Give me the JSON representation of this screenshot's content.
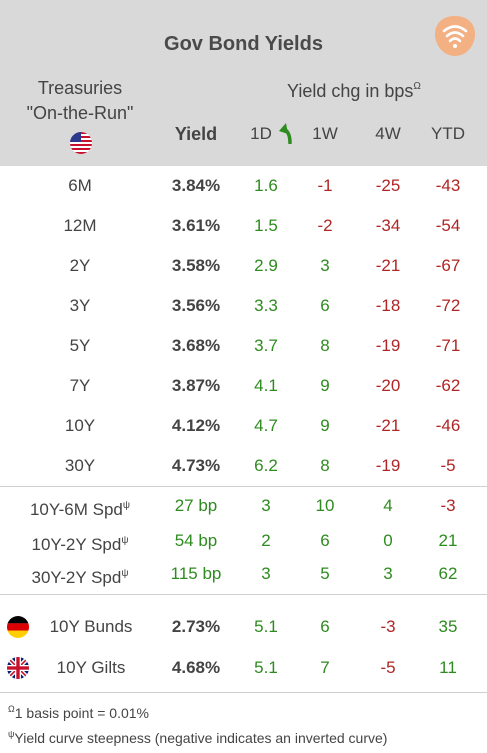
{
  "title": "Gov Bond Yields",
  "header": {
    "treasuries_line1": "Treasuries",
    "treasuries_line2": "\"On-the-Run\"",
    "yield_chg": "Yield chg in bps",
    "yield_chg_sup": "Ω",
    "columns": {
      "yield": "Yield",
      "d1": "1D",
      "w1": "1W",
      "w4": "4W",
      "ytd": "YTD"
    }
  },
  "treasuries": [
    {
      "label": "6M",
      "yield": "3.84%",
      "d1": "1.6",
      "w1": "-1",
      "w4": "-25",
      "ytd": "-43"
    },
    {
      "label": "12M",
      "yield": "3.61%",
      "d1": "1.5",
      "w1": "-2",
      "w4": "-34",
      "ytd": "-54"
    },
    {
      "label": "2Y",
      "yield": "3.58%",
      "d1": "2.9",
      "w1": "3",
      "w4": "-21",
      "ytd": "-67"
    },
    {
      "label": "3Y",
      "yield": "3.56%",
      "d1": "3.3",
      "w1": "6",
      "w4": "-18",
      "ytd": "-72"
    },
    {
      "label": "5Y",
      "yield": "3.68%",
      "d1": "3.7",
      "w1": "8",
      "w4": "-19",
      "ytd": "-71"
    },
    {
      "label": "7Y",
      "yield": "3.87%",
      "d1": "4.1",
      "w1": "9",
      "w4": "-20",
      "ytd": "-62"
    },
    {
      "label": "10Y",
      "yield": "4.12%",
      "d1": "4.7",
      "w1": "9",
      "w4": "-21",
      "ytd": "-46"
    },
    {
      "label": "30Y",
      "yield": "4.73%",
      "d1": "6.2",
      "w1": "8",
      "w4": "-19",
      "ytd": "-5"
    }
  ],
  "spreads": [
    {
      "label": "10Y-6M Spd",
      "sup": "ψ",
      "value": "27 bp",
      "d1": "3",
      "w1": "10",
      "w4": "4",
      "ytd": "-3"
    },
    {
      "label": "10Y-2Y Spd",
      "sup": "ψ",
      "value": "54 bp",
      "d1": "2",
      "w1": "6",
      "w4": "0",
      "ytd": "21"
    },
    {
      "label": "30Y-2Y Spd",
      "sup": "ψ",
      "value": "115 bp",
      "d1": "3",
      "w1": "5",
      "w4": "3",
      "ytd": "62"
    }
  ],
  "foreign": [
    {
      "label": "10Y Bunds",
      "yield": "2.73%",
      "d1": "5.1",
      "w1": "6",
      "w4": "-3",
      "ytd": "35"
    },
    {
      "label": "10Y Gilts",
      "yield": "4.68%",
      "d1": "5.1",
      "w1": "7",
      "w4": "-5",
      "ytd": "11"
    }
  ],
  "footnotes": {
    "note1_sup": "Ω",
    "note1": "1 basis point = 0.01%",
    "note2_sup": "ψ",
    "note2": "Yield curve steepness (negative indicates an inverted curve)"
  },
  "colors": {
    "positive": "#2e8b1f",
    "negative": "#b02525",
    "header_bg": "#d9d9d9",
    "logo": "#f0a070"
  },
  "icons": [
    "logo-icon",
    "us-flag-icon",
    "up-arrow-icon",
    "germany-flag-icon",
    "uk-flag-icon"
  ]
}
